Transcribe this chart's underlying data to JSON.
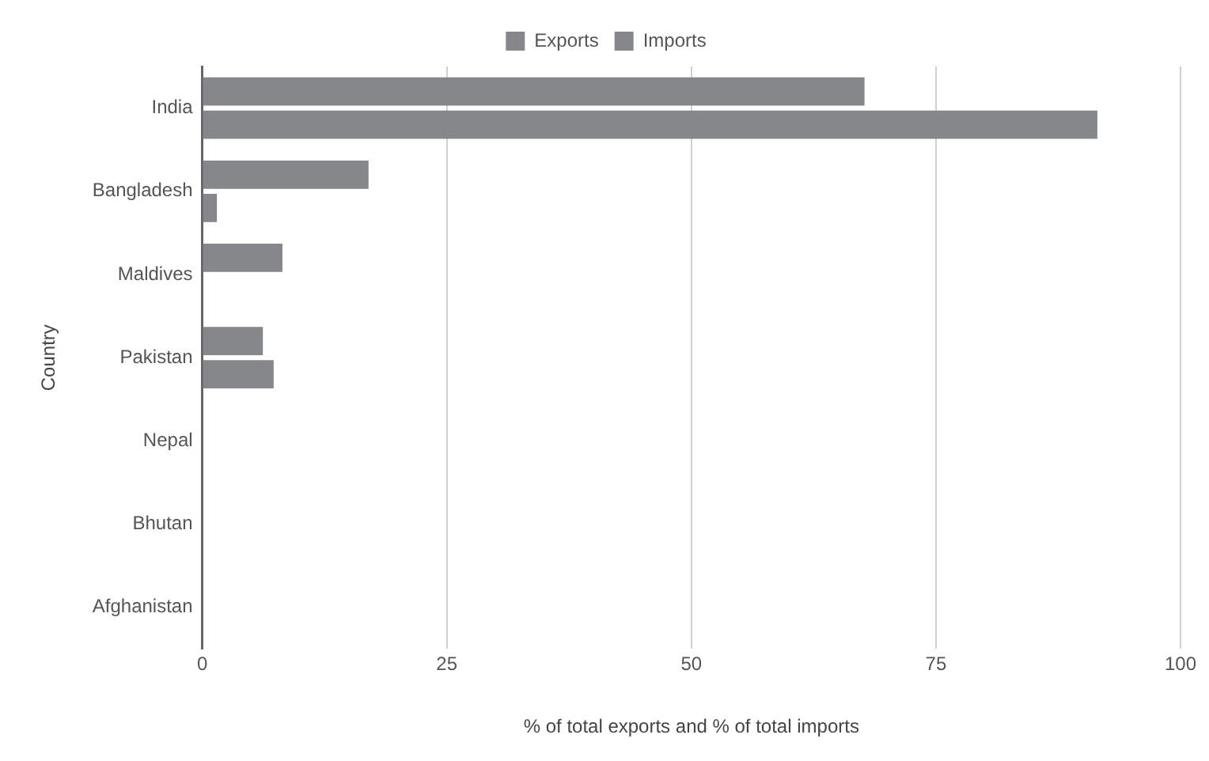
{
  "chart_data": {
    "type": "bar",
    "orientation": "horizontal",
    "xlabel": "% of total exports and % of total imports",
    "ylabel": "Country",
    "categories": [
      "India",
      "Bangladesh",
      "Maldives",
      "Pakistan",
      "Nepal",
      "Bhutan",
      "Afghanistan"
    ],
    "series": [
      {
        "name": "Exports",
        "color": "#86878b",
        "values": [
          67.7,
          17,
          8.2,
          6.2,
          0,
          0,
          0
        ]
      },
      {
        "name": "Imports",
        "color": "#86878b",
        "values": [
          91.5,
          1.5,
          0,
          7.3,
          0,
          0,
          0
        ]
      }
    ],
    "xlim": [
      0,
      100
    ],
    "xticks": [
      0,
      25,
      50,
      75,
      100
    ],
    "grid": "x",
    "legend": "top"
  }
}
